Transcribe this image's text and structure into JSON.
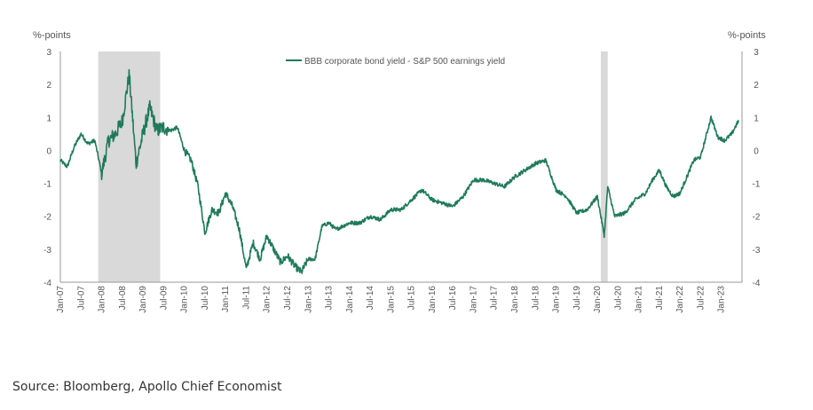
{
  "chart_data": {
    "type": "line",
    "title": "",
    "y_unit_left": "%-points",
    "y_unit_right": "%-points",
    "ylim": [
      -4,
      3
    ],
    "y_ticks": [
      3,
      2,
      1,
      0,
      -1,
      -2,
      -3,
      -4
    ],
    "grid": false,
    "legend_position": "top-center",
    "x_tick_labels": [
      "Jan-07",
      "Jul-07",
      "Jan-08",
      "Jul-08",
      "Jan-09",
      "Jul-09",
      "Jan-10",
      "Jul-10",
      "Jan-11",
      "Jul-11",
      "Jan-12",
      "Jul-12",
      "Jan-13",
      "Jul-13",
      "Jan-14",
      "Jul-14",
      "Jan-15",
      "Jul-15",
      "Jan-16",
      "Jul-16",
      "Jan-17",
      "Jul-17",
      "Jan-18",
      "Jul-18",
      "Jan-19",
      "Jul-19",
      "Jan-20",
      "Jul-20",
      "Jan-21",
      "Jul-21",
      "Jan-22",
      "Jul-22",
      "Jan-23"
    ],
    "recession_shading": [
      {
        "start": "2007-12",
        "end": "2009-06"
      },
      {
        "start": "2020-02",
        "end": "2020-04"
      }
    ],
    "series": [
      {
        "name": "BBB corporate bond yield - S&P 500 earnings yield",
        "color": "#1f7a5c",
        "points": [
          [
            "2007-01",
            -0.3
          ],
          [
            "2007-03",
            -0.5
          ],
          [
            "2007-05",
            0.1
          ],
          [
            "2007-07",
            0.5
          ],
          [
            "2007-09",
            0.2
          ],
          [
            "2007-11",
            0.3
          ],
          [
            "2008-01",
            -0.7
          ],
          [
            "2008-03",
            0.3
          ],
          [
            "2008-05",
            0.5
          ],
          [
            "2008-07",
            0.9
          ],
          [
            "2008-09",
            2.3
          ],
          [
            "2008-11",
            -0.4
          ],
          [
            "2009-01",
            0.5
          ],
          [
            "2009-03",
            1.3
          ],
          [
            "2009-05",
            0.6
          ],
          [
            "2009-07",
            0.7
          ],
          [
            "2009-09",
            0.6
          ],
          [
            "2009-11",
            0.7
          ],
          [
            "2010-01",
            0.0
          ],
          [
            "2010-03",
            -0.3
          ],
          [
            "2010-05",
            -1.1
          ],
          [
            "2010-07",
            -2.5
          ],
          [
            "2010-09",
            -1.8
          ],
          [
            "2010-11",
            -1.9
          ],
          [
            "2011-01",
            -1.3
          ],
          [
            "2011-03",
            -1.7
          ],
          [
            "2011-05",
            -2.4
          ],
          [
            "2011-07",
            -3.6
          ],
          [
            "2011-09",
            -2.8
          ],
          [
            "2011-11",
            -3.3
          ],
          [
            "2012-01",
            -2.6
          ],
          [
            "2012-03",
            -3.0
          ],
          [
            "2012-05",
            -3.4
          ],
          [
            "2012-07",
            -3.2
          ],
          [
            "2012-09",
            -3.5
          ],
          [
            "2012-11",
            -3.7
          ],
          [
            "2013-01",
            -3.3
          ],
          [
            "2013-03",
            -3.3
          ],
          [
            "2013-05",
            -2.3
          ],
          [
            "2013-07",
            -2.2
          ],
          [
            "2013-09",
            -2.4
          ],
          [
            "2013-11",
            -2.3
          ],
          [
            "2014-01",
            -2.2
          ],
          [
            "2014-04",
            -2.2
          ],
          [
            "2014-07",
            -2.0
          ],
          [
            "2014-10",
            -2.1
          ],
          [
            "2015-01",
            -1.8
          ],
          [
            "2015-04",
            -1.8
          ],
          [
            "2015-07",
            -1.5
          ],
          [
            "2015-10",
            -1.2
          ],
          [
            "2016-01",
            -1.5
          ],
          [
            "2016-04",
            -1.6
          ],
          [
            "2016-07",
            -1.7
          ],
          [
            "2016-10",
            -1.4
          ],
          [
            "2017-01",
            -0.9
          ],
          [
            "2017-04",
            -0.9
          ],
          [
            "2017-07",
            -1.0
          ],
          [
            "2017-10",
            -1.1
          ],
          [
            "2018-01",
            -0.8
          ],
          [
            "2018-04",
            -0.6
          ],
          [
            "2018-07",
            -0.4
          ],
          [
            "2018-10",
            -0.3
          ],
          [
            "2019-01",
            -1.2
          ],
          [
            "2019-04",
            -1.4
          ],
          [
            "2019-07",
            -1.9
          ],
          [
            "2019-10",
            -1.8
          ],
          [
            "2020-01",
            -1.4
          ],
          [
            "2020-03",
            -2.6
          ],
          [
            "2020-04",
            -1.1
          ],
          [
            "2020-06",
            -2.0
          ],
          [
            "2020-09",
            -1.9
          ],
          [
            "2020-12",
            -1.5
          ],
          [
            "2021-03",
            -1.3
          ],
          [
            "2021-05",
            -0.9
          ],
          [
            "2021-07",
            -0.6
          ],
          [
            "2021-09",
            -1.1
          ],
          [
            "2021-11",
            -1.4
          ],
          [
            "2022-01",
            -1.3
          ],
          [
            "2022-03",
            -0.8
          ],
          [
            "2022-05",
            -0.3
          ],
          [
            "2022-07",
            -0.2
          ],
          [
            "2022-09",
            0.6
          ],
          [
            "2022-10",
            1.0
          ],
          [
            "2022-12",
            0.4
          ],
          [
            "2023-02",
            0.3
          ],
          [
            "2023-04",
            0.5
          ],
          [
            "2023-06",
            0.9
          ]
        ]
      }
    ]
  },
  "source_note": "Source: Bloomberg, Apollo Chief Economist"
}
